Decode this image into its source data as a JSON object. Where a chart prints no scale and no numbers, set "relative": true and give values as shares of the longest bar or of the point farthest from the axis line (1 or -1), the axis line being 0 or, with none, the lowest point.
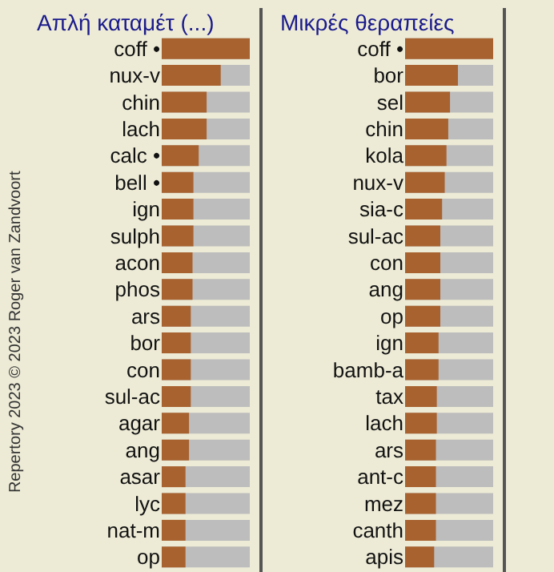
{
  "chart_data": [
    {
      "type": "bar",
      "orientation": "horizontal",
      "relative": true,
      "title": "Απλή καταμέτ (...)",
      "color": "#a8622f",
      "categories": [
        "coff •",
        "nux-v",
        "chin",
        "lach",
        "calc •",
        "bell •",
        "ign",
        "sulph",
        "acon",
        "phos",
        "ars",
        "bor",
        "con",
        "sul-ac",
        "agar",
        "ang",
        "asar",
        "lyc",
        "nat-m",
        "op"
      ],
      "values": [
        1,
        0.67,
        0.51,
        0.51,
        0.42,
        0.36,
        0.36,
        0.36,
        0.35,
        0.35,
        0.33,
        0.33,
        0.33,
        0.33,
        0.31,
        0.31,
        0.27,
        0.27,
        0.27,
        0.27
      ],
      "annotations": [
        "Repertory 2023 © 2023 Roger van Zandvoort"
      ]
    },
    {
      "type": "bar",
      "orientation": "horizontal",
      "relative": true,
      "title": "Μικρές θεραπείες",
      "color": "#a8622f",
      "categories": [
        "coff •",
        "bor",
        "sel",
        "chin",
        "kola",
        "nux-v",
        "sia-c",
        "sul-ac",
        "con",
        "ang",
        "op",
        "ign",
        "bamb-a",
        "tax",
        "lach",
        "ars",
        "ant-c",
        "mez",
        "canth",
        "apis"
      ],
      "values": [
        1,
        0.6,
        0.51,
        0.49,
        0.47,
        0.45,
        0.42,
        0.4,
        0.4,
        0.4,
        0.4,
        0.38,
        0.38,
        0.36,
        0.36,
        0.35,
        0.35,
        0.35,
        0.35,
        0.33
      ]
    }
  ]
}
